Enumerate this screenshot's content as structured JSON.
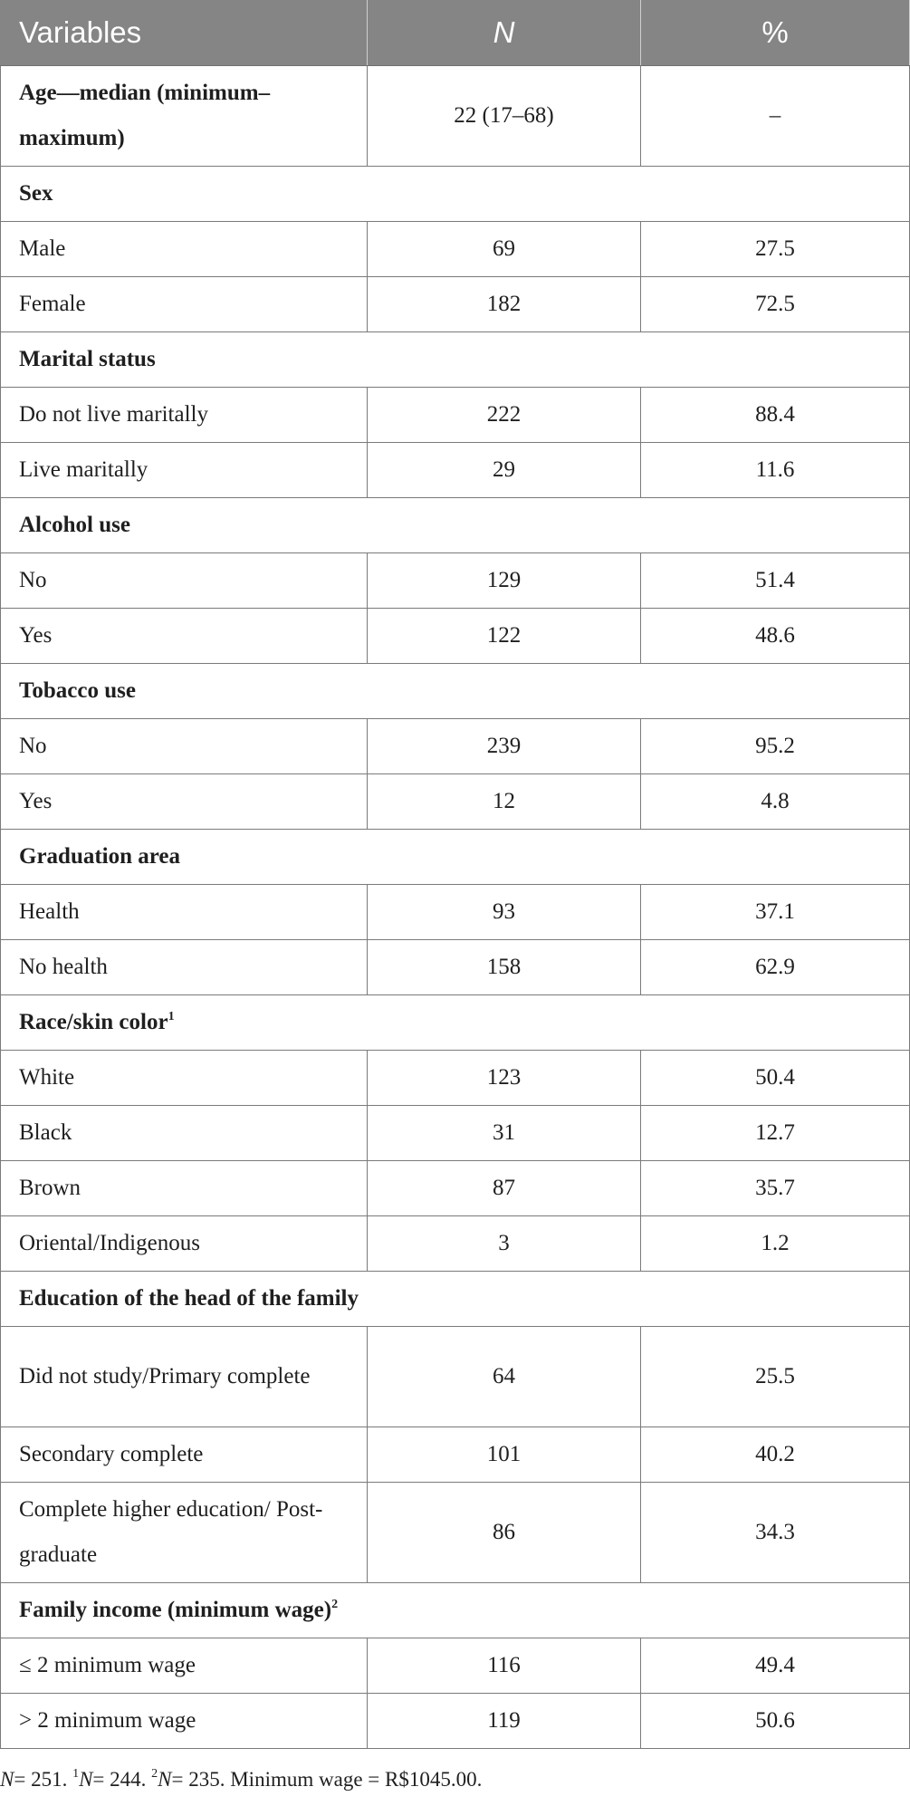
{
  "table": {
    "headers": [
      "Variables",
      "N",
      "%"
    ],
    "rows": [
      {
        "type": "data",
        "label": "Age—median (minimum–maximum)",
        "n": "22 (17–68)",
        "pct": "–",
        "bold_label": true,
        "tall": true
      },
      {
        "type": "section",
        "label": "Sex"
      },
      {
        "type": "data",
        "label": "Male",
        "n": "69",
        "pct": "27.5"
      },
      {
        "type": "data",
        "label": "Female",
        "n": "182",
        "pct": "72.5"
      },
      {
        "type": "section",
        "label": "Marital status"
      },
      {
        "type": "data",
        "label": "Do not live maritally",
        "n": "222",
        "pct": "88.4"
      },
      {
        "type": "data",
        "label": "Live maritally",
        "n": "29",
        "pct": "11.6"
      },
      {
        "type": "section",
        "label": "Alcohol use"
      },
      {
        "type": "data",
        "label": "No",
        "n": "129",
        "pct": "51.4"
      },
      {
        "type": "data",
        "label": "Yes",
        "n": "122",
        "pct": "48.6"
      },
      {
        "type": "section",
        "label": "Tobacco use"
      },
      {
        "type": "data",
        "label": "No",
        "n": "239",
        "pct": "95.2"
      },
      {
        "type": "data",
        "label": "Yes",
        "n": "12",
        "pct": "4.8"
      },
      {
        "type": "section",
        "label": "Graduation area"
      },
      {
        "type": "data",
        "label": "Health",
        "n": "93",
        "pct": "37.1"
      },
      {
        "type": "data",
        "label": "No health",
        "n": "158",
        "pct": "62.9"
      },
      {
        "type": "section",
        "label": "Race/skin color",
        "sup": "1"
      },
      {
        "type": "data",
        "label": "White",
        "n": "123",
        "pct": "50.4"
      },
      {
        "type": "data",
        "label": "Black",
        "n": "31",
        "pct": "12.7"
      },
      {
        "type": "data",
        "label": "Brown",
        "n": "87",
        "pct": "35.7"
      },
      {
        "type": "data",
        "label": "Oriental/Indigenous",
        "n": "3",
        "pct": "1.2"
      },
      {
        "type": "section",
        "label": "Education of the head of the family"
      },
      {
        "type": "data",
        "label": "Did not study/Primary complete",
        "n": "64",
        "pct": "25.5",
        "tall": true
      },
      {
        "type": "data",
        "label": "Secondary complete",
        "n": "101",
        "pct": "40.2"
      },
      {
        "type": "data",
        "label": "Complete higher education/ Post-graduate",
        "n": "86",
        "pct": "34.3",
        "tall": true
      },
      {
        "type": "section",
        "label": "Family income (minimum wage)",
        "sup": "2"
      },
      {
        "type": "data",
        "label": "≤ 2 minimum wage",
        "n": "116",
        "pct": "49.4"
      },
      {
        "type": "data",
        "label": "> 2 minimum wage",
        "n": "119",
        "pct": "50.6"
      }
    ]
  },
  "footnote": {
    "n_symbol": "N",
    "n_total": "= 251.",
    "sup1": "1",
    "n1": "N",
    "n1_val": "= 244.",
    "sup2": "2",
    "n2": "N",
    "n2_val": "= 235.",
    "min_wage": "Minimum wage = R$1045.00."
  }
}
